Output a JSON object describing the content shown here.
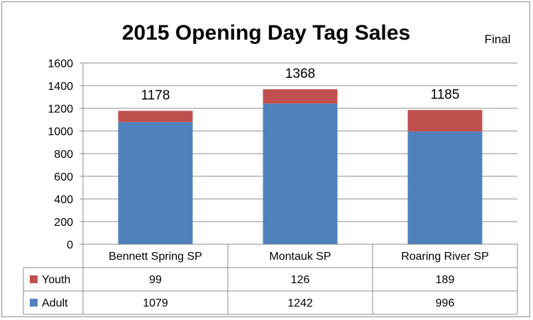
{
  "chart_data": {
    "type": "bar",
    "stacked": true,
    "title": "2015 Opening Day Tag Sales",
    "note": "Final",
    "categories": [
      "Bennett Spring SP",
      "Montauk SP",
      "Roaring River SP"
    ],
    "series": [
      {
        "name": "Youth",
        "values": [
          99,
          126,
          189
        ],
        "color": "#c0504d"
      },
      {
        "name": "Adult",
        "values": [
          1079,
          1242,
          996
        ],
        "color": "#4f81bd"
      }
    ],
    "stack_order": [
      "Adult",
      "Youth"
    ],
    "totals": [
      1178,
      1368,
      1185
    ],
    "ylim": [
      0,
      1600
    ],
    "yticks": [
      0,
      200,
      400,
      600,
      800,
      1000,
      1200,
      1400,
      1600
    ],
    "grid": true,
    "legend": "data-table"
  }
}
